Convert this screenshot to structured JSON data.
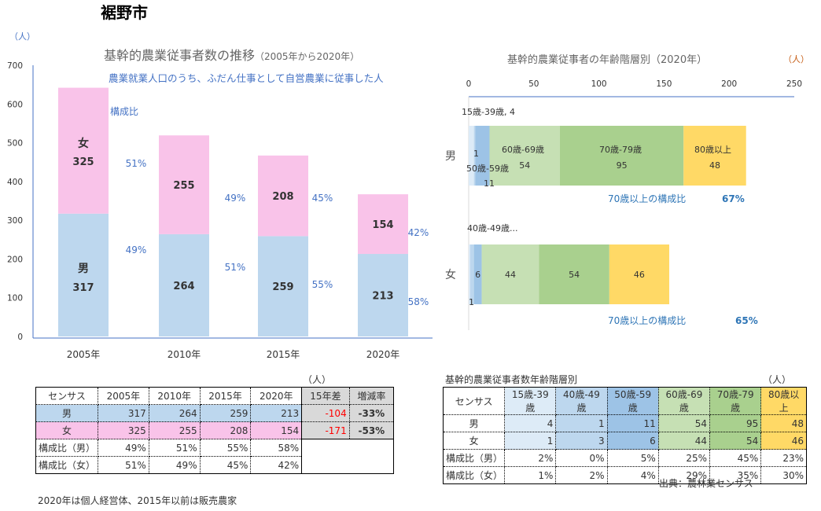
{
  "page_title": "裾野市",
  "left_unit": "（人）",
  "chart_data": [
    {
      "type": "bar",
      "stacked": true,
      "title": "基幹的農業従事者数の推移",
      "title_suffix": "（2005年から2020年）",
      "subtitle": "農業就業人口のうち、ふだん仕事として自営農業に従事した人",
      "ratio_label": "構成比",
      "categories": [
        "2005年",
        "2010年",
        "2015年",
        "2020年"
      ],
      "series": [
        {
          "name": "男",
          "values": [
            317,
            264,
            259,
            213
          ],
          "color": "#bdd7ee",
          "ratios": [
            "49%",
            "51%",
            "55%",
            "58%"
          ]
        },
        {
          "name": "女",
          "values": [
            325,
            255,
            208,
            154
          ],
          "color": "#f9c3e9",
          "ratios": [
            "51%",
            "49%",
            "45%",
            "42%"
          ]
        }
      ],
      "ylim": [
        0,
        700
      ],
      "yticks": [
        "0",
        "100",
        "200",
        "300",
        "400",
        "500",
        "600",
        "700"
      ],
      "grid": false
    },
    {
      "type": "bar",
      "orientation": "horizontal",
      "stacked": true,
      "title": "基幹的農業従事者の年齢階層別（2020年）",
      "unit": "（人）",
      "categories": [
        "男",
        "女"
      ],
      "xlim": [
        0,
        250
      ],
      "xticks": [
        "0",
        "50",
        "100",
        "150",
        "200",
        "250"
      ],
      "series": [
        {
          "name": "15歳-39歳",
          "values": [
            4,
            1
          ],
          "color": "#ddebf7"
        },
        {
          "name": "40歳-49歳",
          "values": [
            1,
            3
          ],
          "color": "#bdd7ee"
        },
        {
          "name": "50歳-59歳",
          "values": [
            11,
            6
          ],
          "color": "#9dc3e6"
        },
        {
          "name": "60歳-69歳",
          "values": [
            54,
            44
          ],
          "color": "#c6e0b4"
        },
        {
          "name": "70歳-79歳",
          "values": [
            95,
            54
          ],
          "color": "#a9d08e"
        },
        {
          "name": "80歳以上",
          "values": [
            48,
            46
          ],
          "color": "#ffd966"
        }
      ],
      "callouts": {
        "male_15_39": "15歳-39歳, 4",
        "male_40_49": "1",
        "male_50_59_name": "50歳-59歳",
        "male_50_59": "11",
        "female_40_49": "40歳-49歳...",
        "female_15_39": "1",
        "male_60_69_name": "60歳-69歳",
        "male_70_79_name": "70歳-79歳",
        "male_80_name": "80歳以上"
      },
      "ratio_label": "70歳以上の構成比",
      "ratio_values": [
        "67%",
        "65%"
      ]
    }
  ],
  "left_table": {
    "unit": "（人）",
    "headers": [
      "センサス",
      "2005年",
      "2010年",
      "2015年",
      "2020年",
      "15年差",
      "増減率"
    ],
    "rows": [
      [
        "男",
        "317",
        "264",
        "259",
        "213",
        "-104",
        "-33%"
      ],
      [
        "女",
        "325",
        "255",
        "208",
        "154",
        "-171",
        "-53%"
      ],
      [
        "構成比（男）",
        "49%",
        "51%",
        "55%",
        "58%"
      ],
      [
        "構成比（女）",
        "51%",
        "49%",
        "45%",
        "42%"
      ]
    ],
    "note": "2020年は個人経営体、2015年以前は販売農家"
  },
  "right_table": {
    "title": "基幹的農業従事者数年齢階層別",
    "unit": "（人）",
    "headers": [
      "センサス",
      "15歳-39歳",
      "40歳-49歳",
      "50歳-59歳",
      "60歳-69歳",
      "70歳-79歳",
      "80歳以上"
    ],
    "rows": [
      [
        "男",
        "4",
        "1",
        "11",
        "54",
        "95",
        "48"
      ],
      [
        "女",
        "1",
        "3",
        "6",
        "44",
        "54",
        "46"
      ],
      [
        "構成比（男）",
        "2%",
        "0%",
        "5%",
        "25%",
        "45%",
        "23%"
      ],
      [
        "構成比（女）",
        "1%",
        "2%",
        "4%",
        "29%",
        "35%",
        "30%"
      ]
    ],
    "source": "出典：農林業センサス"
  }
}
